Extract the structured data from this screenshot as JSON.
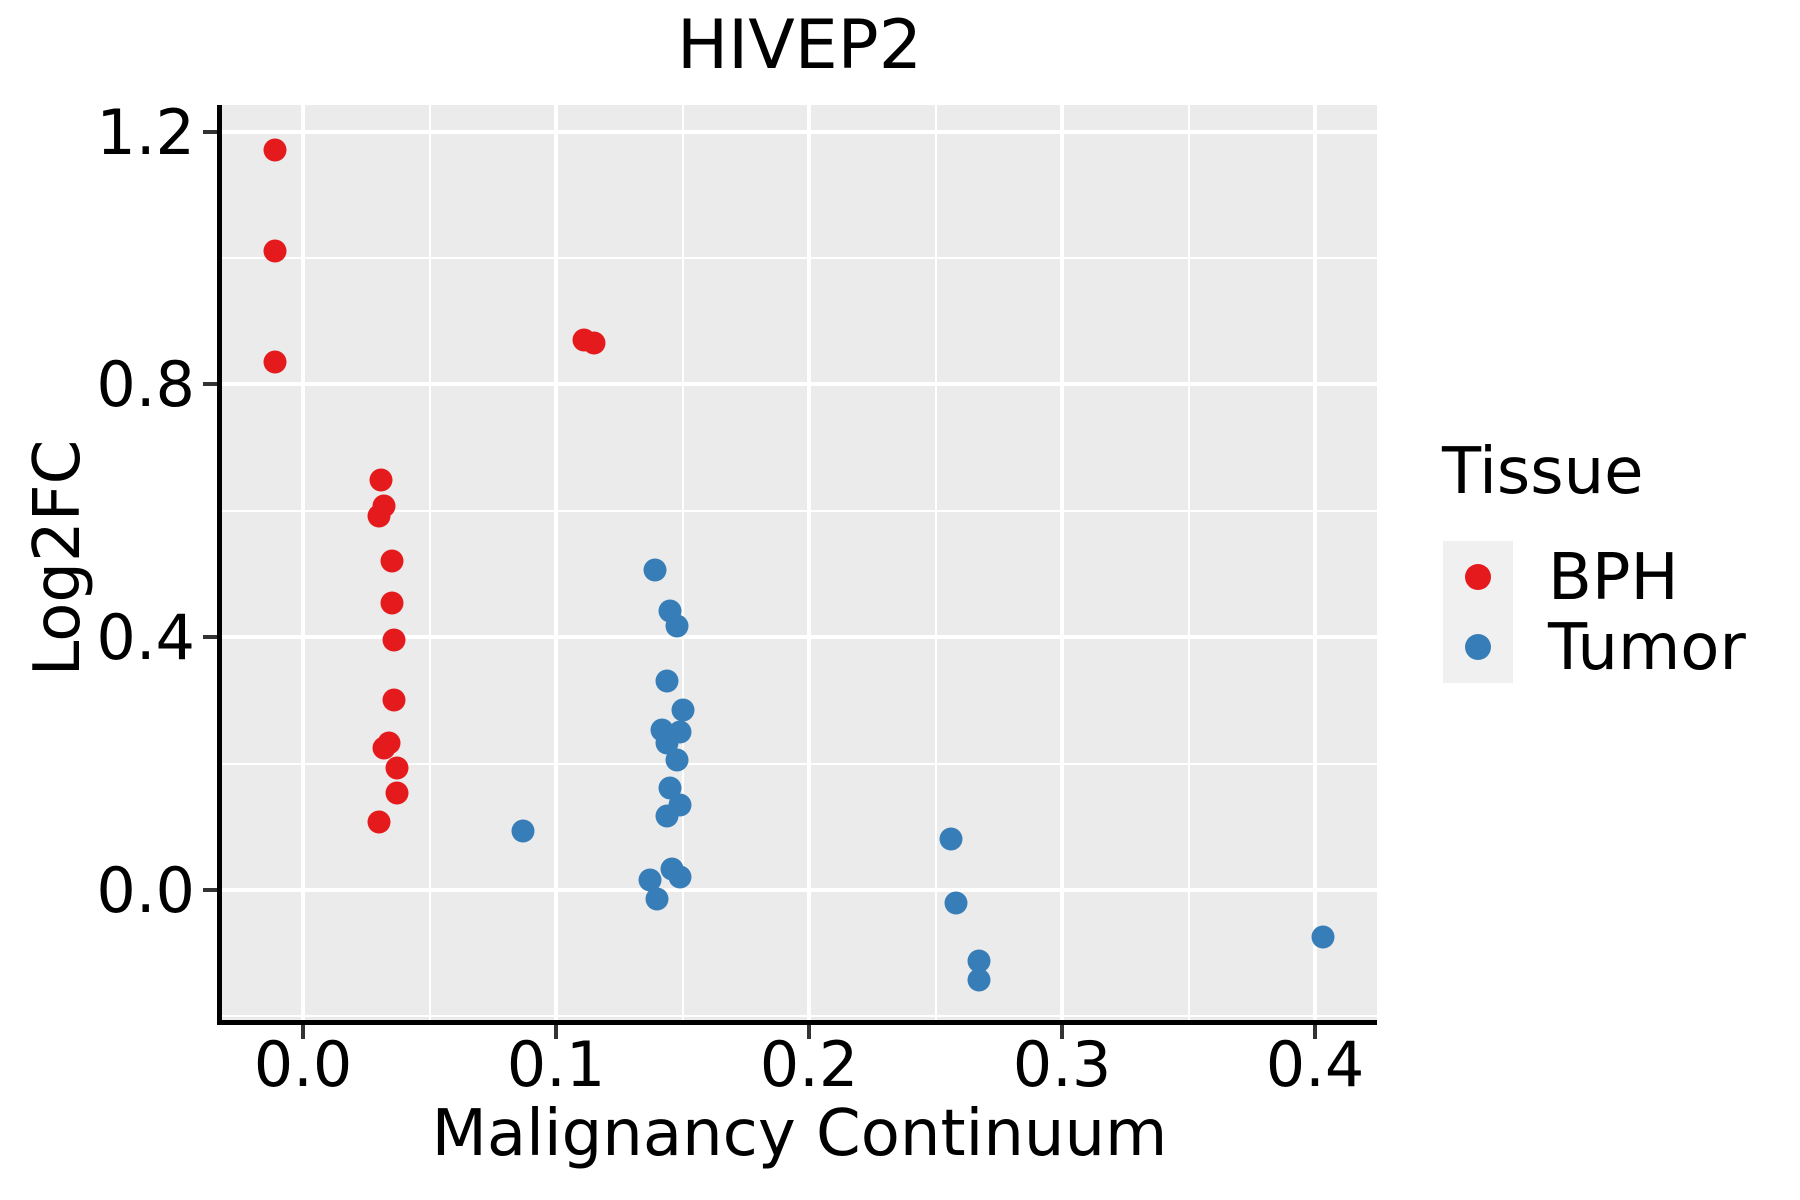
{
  "figure": {
    "title": "HIVEP2",
    "x_label": "Malignancy Continuum",
    "y_label": "Log2FC",
    "legend": {
      "title": "Tissue",
      "items": [
        {
          "label": "BPH",
          "color": "#E41A1C"
        },
        {
          "label": "Tumor",
          "color": "#377EB8"
        }
      ]
    },
    "colors": {
      "panel_background": "#EBEBEB",
      "gridline": "#FFFFFF",
      "spine": "#000000",
      "tick_mark": "#333333",
      "legend_key_background": "#F0F0F0"
    }
  },
  "chart_data": {
    "type": "scatter",
    "title": "HIVEP2",
    "xlabel": "Malignancy Continuum",
    "ylabel": "Log2FC",
    "xlim": [
      -0.032,
      0.425
    ],
    "ylim": [
      -0.206,
      1.242
    ],
    "x_ticks": [
      0.0,
      0.1,
      0.2,
      0.3,
      0.4
    ],
    "y_ticks": [
      0.0,
      0.4,
      0.8,
      1.2
    ],
    "x_minor_ticks": [
      0.05,
      0.15,
      0.25,
      0.35
    ],
    "y_minor_ticks": [
      -0.2,
      0.2,
      0.6,
      1.0
    ],
    "grid": true,
    "legend_position": "right",
    "series": [
      {
        "name": "BPH",
        "color": "#E41A1C",
        "points": [
          [
            -0.011,
            1.171
          ],
          [
            -0.011,
            1.011
          ],
          [
            -0.011,
            0.836
          ],
          [
            0.111,
            0.871
          ],
          [
            0.115,
            0.866
          ],
          [
            0.031,
            0.649
          ],
          [
            0.032,
            0.608
          ],
          [
            0.03,
            0.592
          ],
          [
            0.035,
            0.52
          ],
          [
            0.035,
            0.454
          ],
          [
            0.036,
            0.396
          ],
          [
            0.036,
            0.301
          ],
          [
            0.034,
            0.232
          ],
          [
            0.032,
            0.224
          ],
          [
            0.037,
            0.193
          ],
          [
            0.037,
            0.153
          ],
          [
            0.03,
            0.108
          ]
        ]
      },
      {
        "name": "Tumor",
        "color": "#377EB8",
        "points": [
          [
            0.087,
            0.094
          ],
          [
            0.139,
            0.507
          ],
          [
            0.145,
            0.442
          ],
          [
            0.148,
            0.418
          ],
          [
            0.144,
            0.33
          ],
          [
            0.15,
            0.285
          ],
          [
            0.142,
            0.253
          ],
          [
            0.149,
            0.25
          ],
          [
            0.144,
            0.232
          ],
          [
            0.148,
            0.206
          ],
          [
            0.145,
            0.161
          ],
          [
            0.149,
            0.134
          ],
          [
            0.144,
            0.117
          ],
          [
            0.146,
            0.034
          ],
          [
            0.149,
            0.021
          ],
          [
            0.137,
            0.016
          ],
          [
            0.14,
            -0.015
          ],
          [
            0.256,
            0.08
          ],
          [
            0.258,
            -0.02
          ],
          [
            0.267,
            -0.112
          ],
          [
            0.267,
            -0.142
          ],
          [
            0.403,
            -0.075
          ]
        ]
      }
    ]
  }
}
